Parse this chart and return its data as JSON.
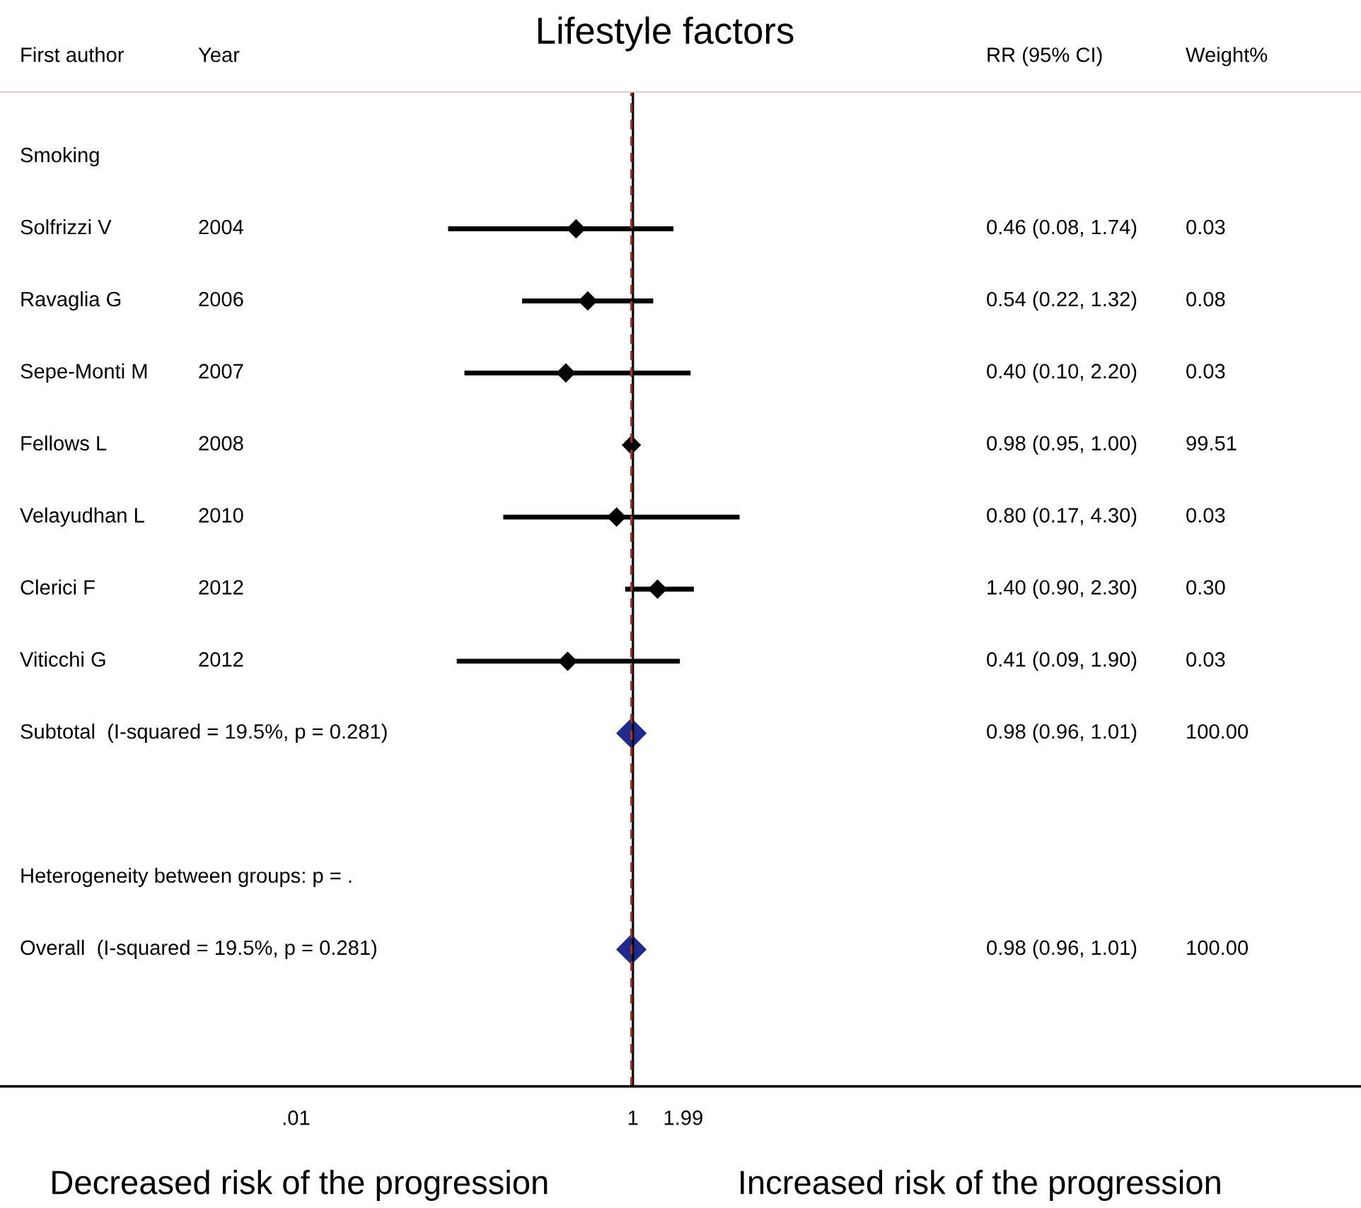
{
  "chart_data": {
    "type": "scatter",
    "title": "Lifestyle factors",
    "orientation": "horizontal",
    "log": "x",
    "categories": [
      "Smoking",
      "Solfrizzi V",
      "Ravaglia G",
      "Sepe-Monti M",
      "Fellows L",
      "Velayudhan L",
      "Clerici F",
      "Viticchi G",
      "Subtotal  (I-squared = 19.5%, p = 0.281)",
      null,
      "Heterogeneity between groups: p = .",
      "Overall  (I-squared = 19.5%, p = 0.281)",
      null
    ],
    "series": [
      {
        "color": "#000000",
        "marker": "diamond",
        "values": [
          null,
          0.46,
          0.54,
          0.4,
          0.98,
          0.8,
          1.4,
          0.41,
          null,
          null,
          null,
          null,
          null
        ],
        "errors": [
          null,
          [
            0.08,
            1.74
          ],
          [
            0.22,
            1.32
          ],
          [
            0.1,
            2.2
          ],
          [
            0.95,
            1.0
          ],
          [
            0.17,
            4.3
          ],
          [
            0.9,
            2.3
          ],
          [
            0.09,
            1.9
          ],
          null,
          null,
          null,
          null,
          null
        ]
      },
      {
        "color": "#1f2a8c",
        "marker": "diamond",
        "values": [
          null,
          null,
          null,
          null,
          null,
          null,
          null,
          null,
          0.98,
          null,
          null,
          0.98,
          null
        ],
        "errors": [
          null,
          null,
          null,
          null,
          null,
          null,
          null,
          null,
          [
            0.96,
            1.01
          ],
          null,
          null,
          [
            0.96,
            1.01
          ],
          null
        ]
      }
    ],
    "xlim": [
      0.000175,
      21000
    ],
    "xticks": [
      {
        "value": 0.01,
        "label": ".01"
      },
      1,
      1.99
    ],
    "ref_lines": [
      {
        "axis": "x",
        "value": 1,
        "color": "#000000"
      },
      {
        "axis": "x",
        "value": 0.98,
        "color": "#a0302a",
        "line_style": "dashed"
      }
    ],
    "grid": false,
    "legend": false,
    "annotations": [
      "First author",
      "Year",
      "RR (95% CI)",
      "Weight%",
      "2004",
      "2006",
      "2007",
      "2008",
      "2010",
      "2012",
      "2012",
      "0.46 (0.08, 1.74)",
      "0.54 (0.22, 1.32)",
      "0.40 (0.10, 2.20)",
      "0.98 (0.95, 1.00)",
      "0.80 (0.17, 4.30)",
      "1.40 (0.90, 2.30)",
      "0.41 (0.09, 1.90)",
      "0.98 (0.96, 1.01)",
      "0.98 (0.96, 1.01)",
      "0.03",
      "0.08",
      "0.03",
      "99.51",
      "0.03",
      "0.30",
      "0.03",
      "100.00",
      "100.00",
      "Decreased risk of the progression",
      "Increased risk of the progression"
    ]
  }
}
